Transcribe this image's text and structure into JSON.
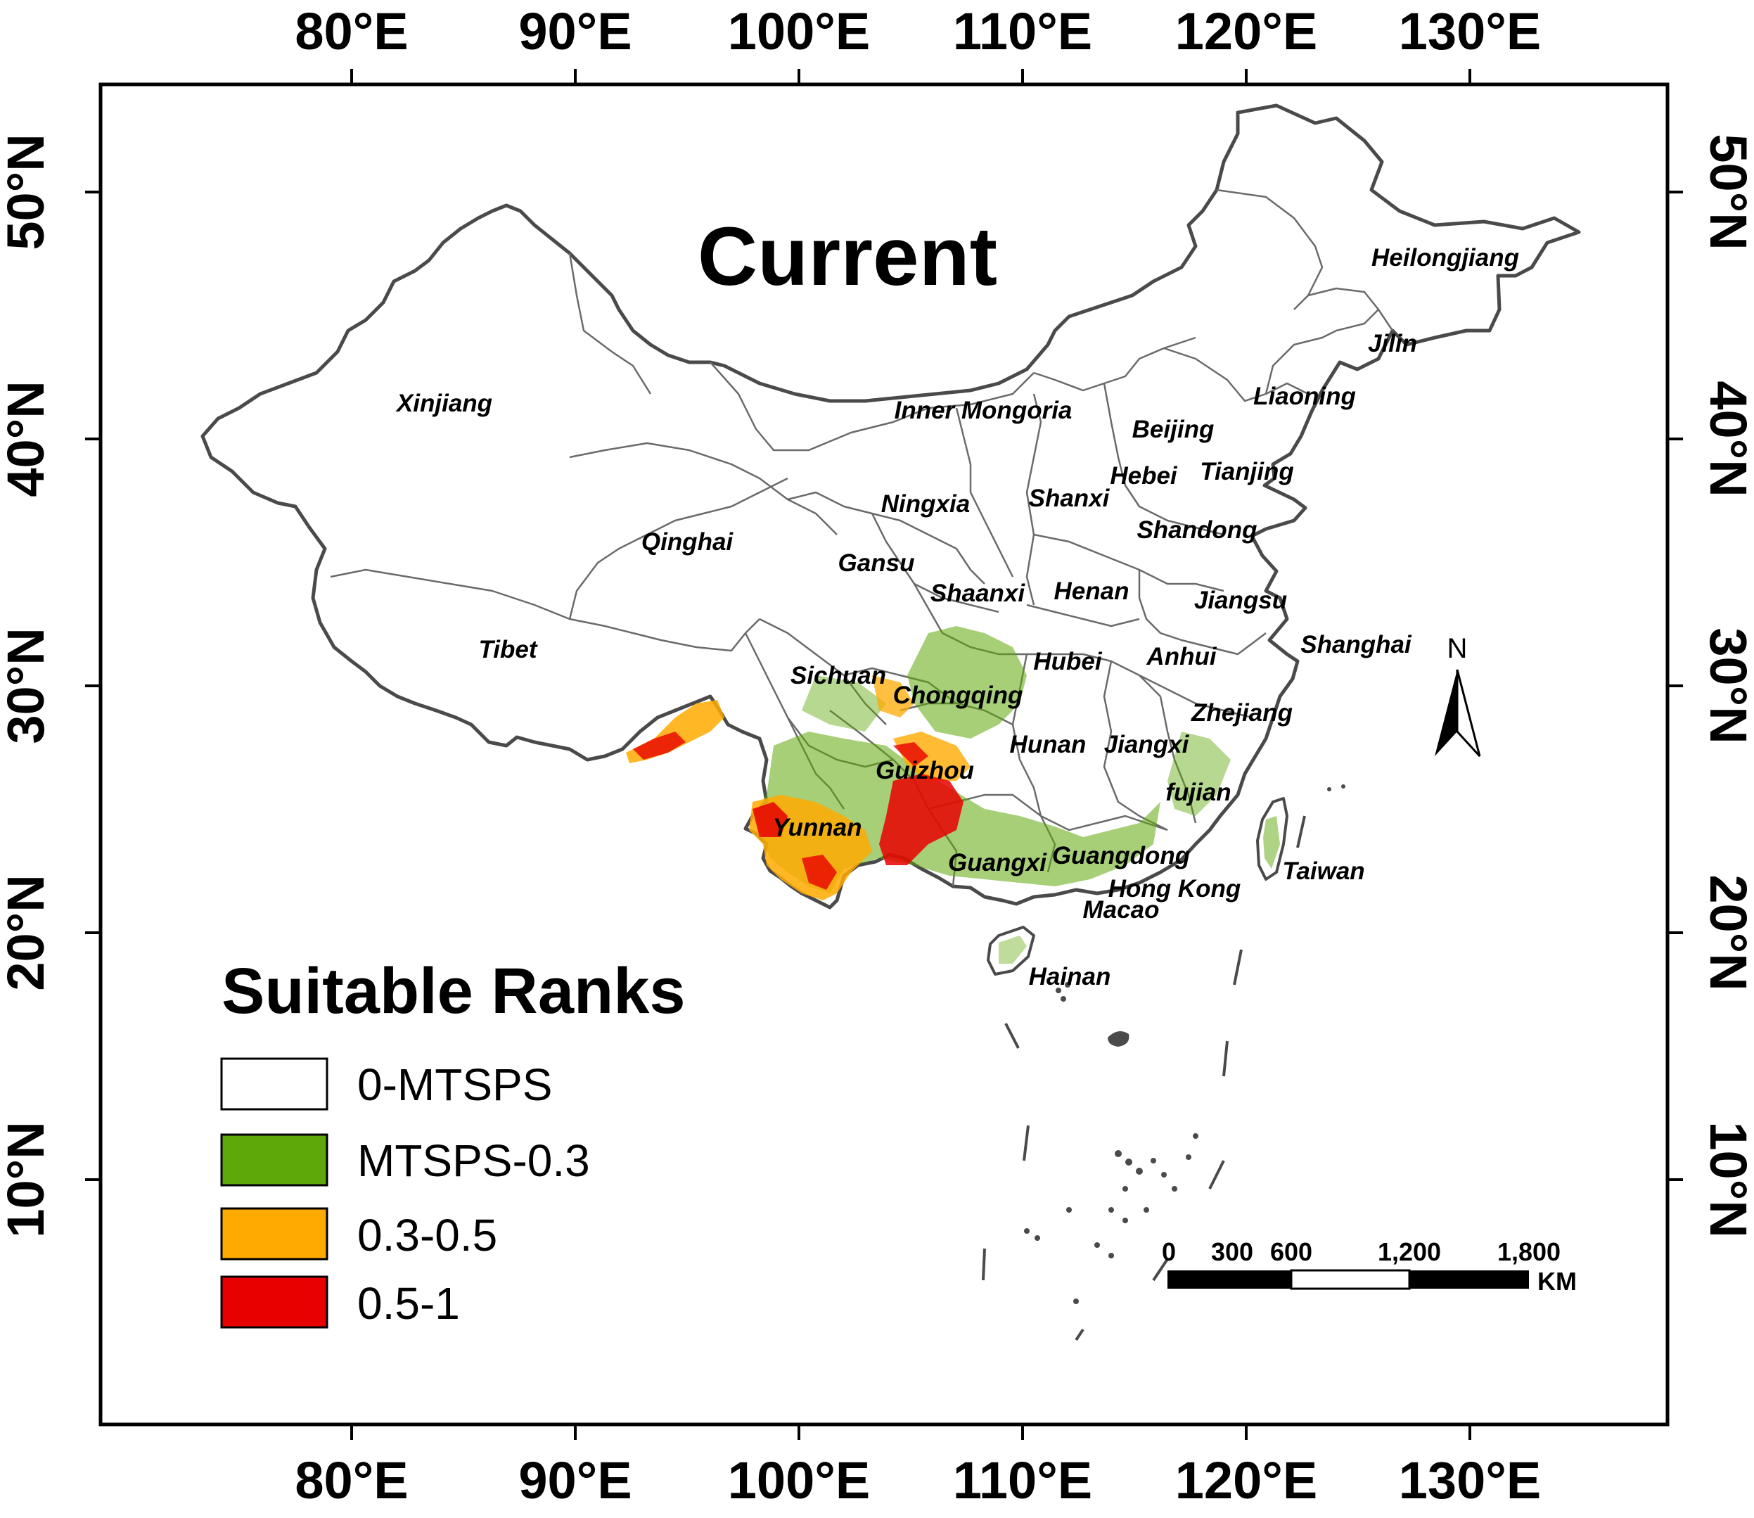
{
  "map_title": "Current",
  "axes": {
    "lon_labels": [
      "80°E",
      "90°E",
      "100°E",
      "110°E",
      "120°E",
      "130°E"
    ],
    "lat_labels": [
      "50°N",
      "40°N",
      "30°N",
      "20°N",
      "10°N"
    ]
  },
  "provinces": [
    "Heilongjiang",
    "Jilin",
    "Liaoning",
    "Xinjiang",
    "Inner Mongoria",
    "Beijing",
    "Hebei",
    "Tianjing",
    "Shanxi",
    "Ningxia",
    "Shandong",
    "Qinghai",
    "Gansu",
    "Shaanxi",
    "Henan",
    "Jiangsu",
    "Tibet",
    "Sichuan",
    "Hubei",
    "Anhui",
    "Shanghai",
    "Chongqing",
    "Zhejiang",
    "Hunan",
    "Jiangxi",
    "Guizhou",
    "fujian",
    "Yunnan",
    "Guangxi",
    "Guangdong",
    "Taiwan",
    "Hong Kong",
    "Macao",
    "Hainan"
  ],
  "legend": {
    "title": "Suitable Ranks",
    "items": [
      {
        "label": "0-MTSPS",
        "color": "#ffffff"
      },
      {
        "label": "MTSPS-0.3",
        "color": "#5fa80a"
      },
      {
        "label": "0.3-0.5",
        "color": "#ffaa00"
      },
      {
        "label": "0.5-1",
        "color": "#e80000"
      }
    ]
  },
  "north_arrow": {
    "label": "N"
  },
  "scale_bar": {
    "ticks": [
      "0",
      "300",
      "600",
      "1,200",
      "1,800"
    ],
    "unit": "KM"
  },
  "colors": {
    "border": "#4a4a4a",
    "low": "#5fa80a",
    "mid": "#ffaa00",
    "high": "#e80000"
  }
}
